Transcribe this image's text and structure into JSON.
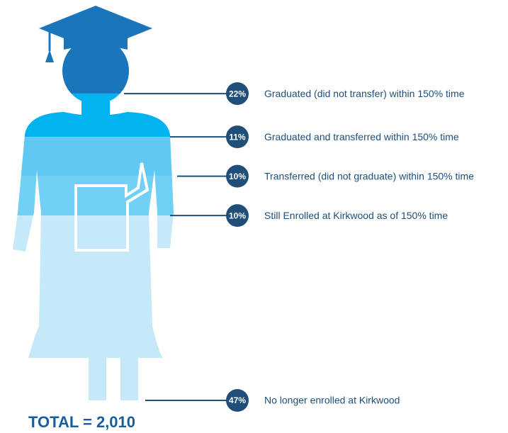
{
  "chart_data": {
    "type": "pictogram",
    "categories": [
      "Graduated (did not transfer) within 150% time",
      "Graduated and transferred within 150% time",
      "Transferred (did not graduate) within 150% time",
      "Still Enrolled at Kirkwood as of 150% time",
      "No longer enrolled at Kirkwood"
    ],
    "values": [
      22,
      11,
      10,
      10,
      47
    ],
    "value_labels": [
      "22%",
      "11%",
      "10%",
      "10%",
      "47%"
    ],
    "colors": [
      "#1b75bb",
      "#00b2ee",
      "#5fc9f3",
      "#72cff5",
      "#c6e9f9"
    ],
    "total": "TOTAL = 2,010"
  }
}
